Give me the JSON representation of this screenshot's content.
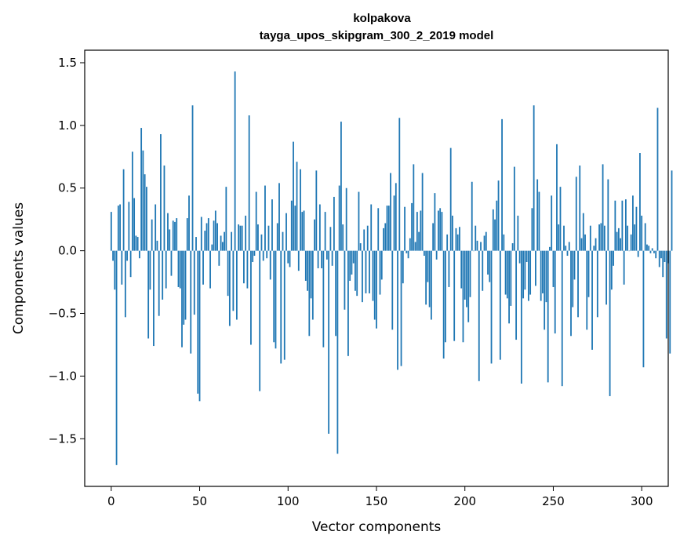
{
  "chart_data": {
    "type": "bar",
    "title": "kolpakova",
    "subtitle": "tayga_upos_skipgram_300_2_2019 model",
    "xlabel": "Vector components",
    "ylabel": "Components values",
    "xlim": [
      -15,
      315
    ],
    "ylim": [
      -1.88,
      1.6
    ],
    "xticks": [
      0,
      50,
      100,
      150,
      200,
      250,
      300
    ],
    "yticks": [
      -1.5,
      -1.0,
      -0.5,
      0.0,
      0.5,
      1.0,
      1.5
    ],
    "ytick_labels": [
      "−1.5",
      "−1.0",
      "−0.5",
      "0.0",
      "0.5",
      "1.0",
      "1.5"
    ],
    "bar_color": "#1f77b4",
    "x_start": 0,
    "values": [
      0.31,
      -0.08,
      -0.31,
      -1.71,
      0.36,
      0.37,
      -0.27,
      0.65,
      -0.53,
      -0.08,
      0.39,
      -0.21,
      0.79,
      0.42,
      0.12,
      0.11,
      -0.06,
      0.98,
      0.8,
      0.61,
      0.51,
      -0.7,
      -0.31,
      0.25,
      -0.76,
      0.37,
      0.08,
      -0.52,
      0.93,
      -0.39,
      0.68,
      -0.3,
      0.3,
      0.17,
      -0.2,
      0.24,
      0.23,
      0.26,
      -0.29,
      -0.3,
      -0.77,
      -0.59,
      -0.55,
      0.26,
      0.44,
      -0.82,
      1.16,
      -0.51,
      0.11,
      -1.14,
      -1.2,
      0.27,
      -0.27,
      0.16,
      0.22,
      0.26,
      -0.3,
      0.05,
      0.24,
      0.32,
      0.22,
      -0.12,
      0.12,
      0.07,
      0.15,
      0.51,
      -0.36,
      -0.6,
      0.15,
      -0.48,
      1.43,
      -0.55,
      0.21,
      0.2,
      0.2,
      -0.26,
      0.28,
      -0.3,
      1.08,
      -0.75,
      -0.09,
      -0.04,
      0.47,
      0.21,
      -1.12,
      0.13,
      -0.08,
      0.52,
      -0.06,
      0.2,
      -0.23,
      0.41,
      -0.73,
      -0.78,
      0.22,
      0.54,
      -0.9,
      0.15,
      -0.87,
      0.3,
      -0.1,
      -0.13,
      0.4,
      0.87,
      0.36,
      0.71,
      -0.16,
      0.65,
      0.31,
      0.32,
      -0.24,
      -0.32,
      -0.68,
      -0.38,
      -0.55,
      0.25,
      0.64,
      -0.14,
      0.37,
      -0.14,
      -0.77,
      0.31,
      -0.07,
      -1.46,
      0.19,
      -0.12,
      0.43,
      -0.68,
      -1.62,
      0.52,
      1.03,
      0.21,
      -0.47,
      0.5,
      -0.84,
      -0.24,
      -0.19,
      -0.1,
      -0.32,
      -0.36,
      0.47,
      0.06,
      -0.41,
      0.17,
      -0.34,
      0.2,
      -0.34,
      0.37,
      -0.4,
      -0.55,
      -0.62,
      0.34,
      -0.35,
      -0.23,
      0.18,
      0.22,
      0.36,
      0.36,
      0.62,
      -0.63,
      0.44,
      0.54,
      -0.95,
      1.06,
      -0.92,
      -0.26,
      0.35,
      -0.02,
      -0.06,
      0.1,
      0.38,
      0.69,
      0.07,
      0.31,
      0.15,
      0.32,
      0.62,
      -0.04,
      -0.43,
      -0.25,
      -0.45,
      -0.55,
      0.22,
      0.46,
      -0.07,
      0.32,
      0.34,
      0.31,
      -0.86,
      -0.73,
      0.13,
      -0.29,
      0.82,
      0.28,
      -0.72,
      0.18,
      0.13,
      0.19,
      -0.3,
      -0.73,
      -0.39,
      -0.45,
      -0.57,
      -0.37,
      0.55,
      0.0,
      0.2,
      0.08,
      -1.04,
      0.07,
      -0.32,
      0.12,
      0.15,
      -0.19,
      -0.25,
      -0.9,
      0.33,
      0.25,
      0.4,
      0.56,
      -0.87,
      1.05,
      0.13,
      -0.35,
      -0.38,
      -0.58,
      -0.44,
      0.06,
      0.67,
      -0.71,
      0.28,
      -0.1,
      -1.06,
      -0.38,
      -0.31,
      -0.09,
      -0.4,
      -0.35,
      0.34,
      1.16,
      -0.28,
      0.57,
      0.47,
      -0.4,
      -0.34,
      -0.63,
      -0.41,
      -1.05,
      0.03,
      0.44,
      -0.29,
      -0.66,
      0.85,
      0.21,
      0.51,
      -1.08,
      0.2,
      0.04,
      -0.04,
      0.07,
      -0.68,
      -0.45,
      -0.23,
      0.59,
      -0.53,
      0.68,
      0.1,
      0.3,
      0.13,
      -0.63,
      -0.37,
      0.2,
      -0.79,
      0.04,
      0.1,
      -0.53,
      0.21,
      0.22,
      0.69,
      0.2,
      -0.43,
      0.57,
      -1.16,
      -0.31,
      -0.12,
      0.4,
      0.15,
      0.18,
      0.1,
      0.4,
      -0.27,
      0.41,
      0.2,
      0.0,
      0.13,
      0.44,
      0.21,
      0.35,
      -0.05,
      0.78,
      0.28,
      -0.93,
      0.22,
      0.05,
      0.04,
      -0.02,
      0.02,
      -0.02,
      -0.06,
      1.14,
      -0.13,
      -0.06,
      -0.21,
      -0.09,
      -0.7,
      -0.1,
      -0.82,
      0.64
    ]
  }
}
